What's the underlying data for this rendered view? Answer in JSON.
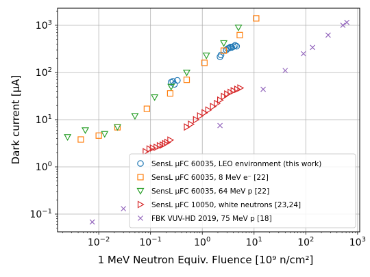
{
  "chart_data": {
    "type": "scatter",
    "title": "",
    "xlabel": "1 MeV Neutron Equiv. Fluence [10⁹ n/cm²]",
    "ylabel": "Dark current [μA]",
    "xscale": "log",
    "yscale": "log",
    "xlim": [
      0.0016,
      1100
    ],
    "ylim": [
      0.042,
      2300
    ],
    "grid": true,
    "legend_position": "lower-right",
    "x_ticks": [
      {
        "value": 0.01,
        "base": "10",
        "exp": "−2"
      },
      {
        "value": 0.1,
        "base": "10",
        "exp": "−1"
      },
      {
        "value": 1,
        "base": "10",
        "exp": "0"
      },
      {
        "value": 10,
        "base": "10",
        "exp": "1"
      },
      {
        "value": 100,
        "base": "10",
        "exp": "2"
      },
      {
        "value": 1000,
        "base": "10",
        "exp": "3"
      }
    ],
    "y_ticks": [
      {
        "value": 0.1,
        "base": "10",
        "exp": "−1"
      },
      {
        "value": 1,
        "base": "10",
        "exp": "0"
      },
      {
        "value": 10,
        "base": "10",
        "exp": "1"
      },
      {
        "value": 100,
        "base": "10",
        "exp": "2"
      },
      {
        "value": 1000,
        "base": "10",
        "exp": "3"
      }
    ],
    "series": [
      {
        "name": "SensL μFC 60035, LEO environment (this work)",
        "marker": "circle",
        "color": "#1f77b4",
        "points": [
          [
            0.25,
            62
          ],
          [
            0.27,
            65
          ],
          [
            0.29,
            56
          ],
          [
            0.33,
            68
          ],
          [
            2.2,
            215
          ],
          [
            2.3,
            235
          ],
          [
            2.9,
            300
          ],
          [
            3.1,
            320
          ],
          [
            3.3,
            330
          ],
          [
            3.5,
            345
          ],
          [
            3.7,
            340
          ],
          [
            4.0,
            355
          ],
          [
            4.3,
            375
          ],
          [
            4.6,
            360
          ]
        ]
      },
      {
        "name": "SensL μFC 60035, 8 MeV e⁻ [22]",
        "marker": "square",
        "color": "#ff7f0e",
        "points": [
          [
            0.0045,
            3.8
          ],
          [
            0.01,
            4.6
          ],
          [
            0.023,
            6.9
          ],
          [
            0.085,
            17
          ],
          [
            0.24,
            36
          ],
          [
            0.5,
            70
          ],
          [
            1.1,
            160
          ],
          [
            2.6,
            290
          ],
          [
            5.3,
            620
          ],
          [
            11,
            1400
          ]
        ]
      },
      {
        "name": "SensL μFC 60035, 64 MeV p [22]",
        "marker": "triangle-down",
        "color": "#2ca02c",
        "points": [
          [
            0.0025,
            4.3
          ],
          [
            0.0055,
            6.0
          ],
          [
            0.013,
            5.0
          ],
          [
            0.023,
            7.0
          ],
          [
            0.05,
            12
          ],
          [
            0.12,
            30
          ],
          [
            0.25,
            50
          ],
          [
            0.5,
            100
          ],
          [
            1.2,
            230
          ],
          [
            2.6,
            420
          ],
          [
            5.0,
            900
          ]
        ]
      },
      {
        "name": "SensL μFC 10050, white neutrons [23,24]",
        "marker": "triangle-right",
        "color": "#d62728",
        "points": [
          [
            0.08,
            2.1
          ],
          [
            0.095,
            2.4
          ],
          [
            0.11,
            2.5
          ],
          [
            0.13,
            2.6
          ],
          [
            0.15,
            2.8
          ],
          [
            0.17,
            2.9
          ],
          [
            0.19,
            3.1
          ],
          [
            0.21,
            3.3
          ],
          [
            0.24,
            3.7
          ],
          [
            0.5,
            7.0
          ],
          [
            0.6,
            8.0
          ],
          [
            0.75,
            10
          ],
          [
            0.9,
            12
          ],
          [
            1.1,
            14
          ],
          [
            1.3,
            16
          ],
          [
            1.6,
            19
          ],
          [
            1.9,
            22
          ],
          [
            2.2,
            26
          ],
          [
            2.6,
            31
          ],
          [
            3.0,
            35
          ],
          [
            3.5,
            38
          ],
          [
            4.0,
            41
          ],
          [
            4.7,
            44
          ],
          [
            5.4,
            47
          ]
        ]
      },
      {
        "name": "FBK VUV-HD 2019, 75 MeV p [18]",
        "marker": "x",
        "color": "#9467bd",
        "points": [
          [
            0.0075,
            0.068
          ],
          [
            0.03,
            0.13
          ],
          [
            2.2,
            7.5
          ],
          [
            15,
            44
          ],
          [
            40,
            110
          ],
          [
            90,
            250
          ],
          [
            135,
            340
          ],
          [
            270,
            620
          ],
          [
            520,
            1000
          ],
          [
            620,
            1150
          ]
        ]
      }
    ]
  }
}
